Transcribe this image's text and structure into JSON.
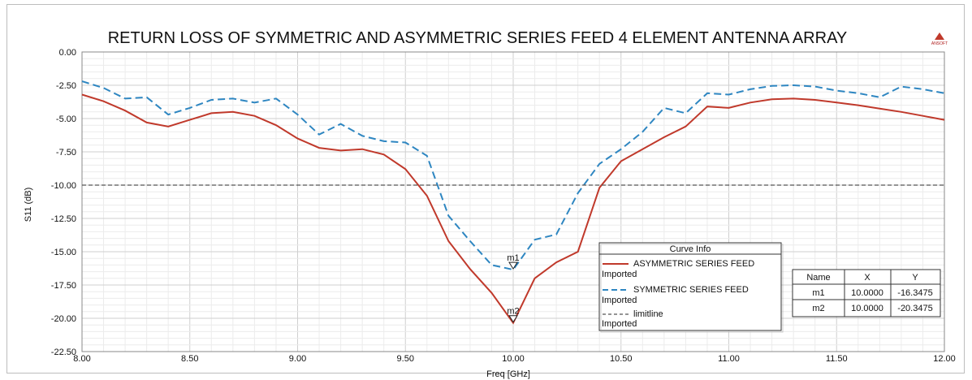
{
  "chart_data": {
    "type": "line",
    "title": "RETURN LOSS OF SYMMETRIC AND ASYMMETRIC SERIES FEED 4 ELEMENT ANTENNA ARRAY",
    "xlabel": "Freq [GHz]",
    "ylabel": "S11 (dB)",
    "xlim": [
      8.0,
      12.0
    ],
    "ylim": [
      -22.5,
      0.0
    ],
    "grid": true,
    "x_ticks": [
      "8.00",
      "8.50",
      "9.00",
      "9.50",
      "10.00",
      "10.50",
      "11.00",
      "11.50",
      "12.00"
    ],
    "y_ticks": [
      "0.00",
      "-2.50",
      "-5.00",
      "-7.50",
      "-10.00",
      "-12.50",
      "-15.00",
      "-17.50",
      "-20.00",
      "-22.50"
    ],
    "series": [
      {
        "name": "ASYMMETRIC SERIES FEED",
        "subname": "Imported",
        "color": "#c0392b",
        "style": "solid",
        "x": [
          8.0,
          8.1,
          8.2,
          8.3,
          8.4,
          8.5,
          8.6,
          8.7,
          8.8,
          8.9,
          9.0,
          9.1,
          9.2,
          9.3,
          9.4,
          9.5,
          9.6,
          9.7,
          9.8,
          9.9,
          10.0,
          10.1,
          10.2,
          10.3,
          10.4,
          10.5,
          10.6,
          10.7,
          10.8,
          10.9,
          11.0,
          11.1,
          11.2,
          11.3,
          11.4,
          11.5,
          11.6,
          11.7,
          11.8,
          11.9,
          12.0
        ],
        "y": [
          -3.2,
          -3.7,
          -4.4,
          -5.3,
          -5.6,
          -5.1,
          -4.6,
          -4.5,
          -4.8,
          -5.5,
          -6.5,
          -7.2,
          -7.4,
          -7.3,
          -7.7,
          -8.8,
          -10.8,
          -14.2,
          -16.3,
          -18.1,
          -20.35,
          -17.0,
          -15.8,
          -15.0,
          -10.2,
          -8.2,
          -7.3,
          -6.4,
          -5.6,
          -4.1,
          -4.2,
          -3.8,
          -3.55,
          -3.5,
          -3.6,
          -3.8,
          -4.0,
          -4.25,
          -4.5,
          -4.8,
          -5.1
        ]
      },
      {
        "name": "SYMMETRIC SERIES FEED",
        "subname": "Imported",
        "color": "#2e86c1",
        "style": "dashed",
        "x": [
          8.0,
          8.1,
          8.2,
          8.3,
          8.4,
          8.5,
          8.6,
          8.7,
          8.8,
          8.9,
          9.0,
          9.1,
          9.2,
          9.3,
          9.4,
          9.5,
          9.6,
          9.7,
          9.8,
          9.9,
          10.0,
          10.1,
          10.2,
          10.3,
          10.4,
          10.5,
          10.6,
          10.7,
          10.8,
          10.9,
          11.0,
          11.1,
          11.2,
          11.3,
          11.4,
          11.5,
          11.6,
          11.7,
          11.8,
          11.9,
          12.0
        ],
        "y": [
          -2.2,
          -2.7,
          -3.5,
          -3.4,
          -4.7,
          -4.2,
          -3.6,
          -3.5,
          -3.8,
          -3.5,
          -4.7,
          -6.2,
          -5.4,
          -6.3,
          -6.7,
          -6.8,
          -7.8,
          -12.3,
          -14.2,
          -16.0,
          -16.35,
          -14.1,
          -13.7,
          -10.6,
          -8.4,
          -7.3,
          -6.0,
          -4.2,
          -4.6,
          -3.1,
          -3.2,
          -2.8,
          -2.55,
          -2.5,
          -2.6,
          -2.9,
          -3.1,
          -3.4,
          -2.6,
          -2.8,
          -3.1
        ]
      },
      {
        "name": "limitline",
        "subname": "Imported",
        "color": "#555555",
        "style": "dashed",
        "x": [
          8.0,
          12.0
        ],
        "y": [
          -10.0,
          -10.0
        ]
      }
    ],
    "markers": [
      {
        "name": "m1",
        "x": 10.0,
        "y": -16.3475
      },
      {
        "name": "m2",
        "x": 10.0,
        "y": -20.3475
      }
    ],
    "legend": {
      "title": "Curve Info",
      "placement": "bottom-center-right"
    },
    "marker_table": {
      "headers": [
        "Name",
        "X",
        "Y"
      ],
      "rows": [
        [
          "m1",
          "10.0000",
          "-16.3475"
        ],
        [
          "m2",
          "10.0000",
          "-20.3475"
        ]
      ]
    },
    "logo_text": "ANSOFT"
  }
}
